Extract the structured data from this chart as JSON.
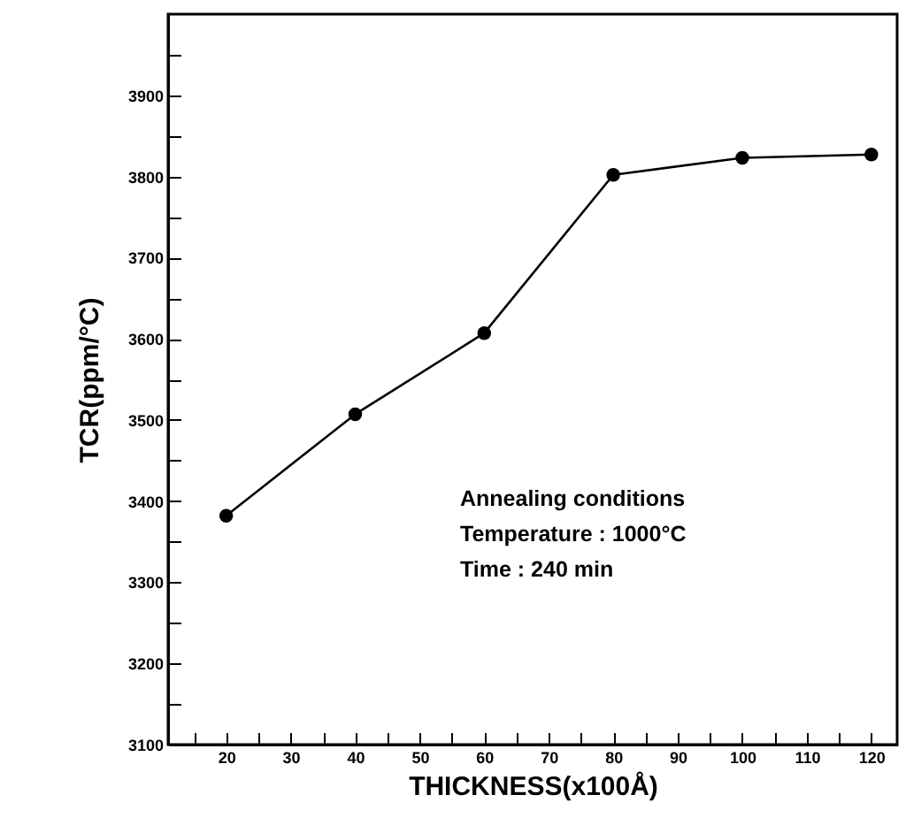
{
  "chart_data": {
    "type": "line",
    "xlabel": "THICKNESS(x100Å)",
    "ylabel": "TCR(ppm/°C)",
    "x": [
      20,
      40,
      60,
      80,
      100,
      120
    ],
    "series": [
      {
        "color": "#000000",
        "values": [
          3382,
          3507,
          3607,
          3802,
          3823,
          3827
        ]
      }
    ],
    "marker": "circle",
    "grid": false,
    "xlim": [
      11,
      124
    ],
    "xticks": [
      {
        "value": 15,
        "label": null
      },
      20,
      {
        "value": 25,
        "label": null
      },
      30,
      {
        "value": 35,
        "label": null
      },
      40,
      {
        "value": 45,
        "label": null
      },
      50,
      {
        "value": 55,
        "label": null
      },
      60,
      {
        "value": 65,
        "label": null
      },
      70,
      {
        "value": 75,
        "label": null
      },
      80,
      {
        "value": 85,
        "label": null
      },
      90,
      {
        "value": 95,
        "label": null
      },
      100,
      {
        "value": 105,
        "label": null
      },
      110,
      {
        "value": 115,
        "label": null
      },
      120
    ],
    "ylim": [
      3100,
      4000
    ],
    "yticks": [
      3100,
      {
        "value": 3150,
        "label": null
      },
      3200,
      {
        "value": 3250,
        "label": null
      },
      3300,
      {
        "value": 3350,
        "label": null
      },
      3400,
      {
        "value": 3450,
        "label": null
      },
      3500,
      {
        "value": 3550,
        "label": null
      },
      3600,
      {
        "value": 3650,
        "label": null
      },
      3700,
      {
        "value": 3750,
        "label": null
      },
      3800,
      {
        "value": 3850,
        "label": null
      },
      3900,
      {
        "value": 3950,
        "label": null
      }
    ],
    "annotations": [
      "Annealing conditions",
      "Temperature : 1000°C",
      "Time : 240 min"
    ]
  }
}
